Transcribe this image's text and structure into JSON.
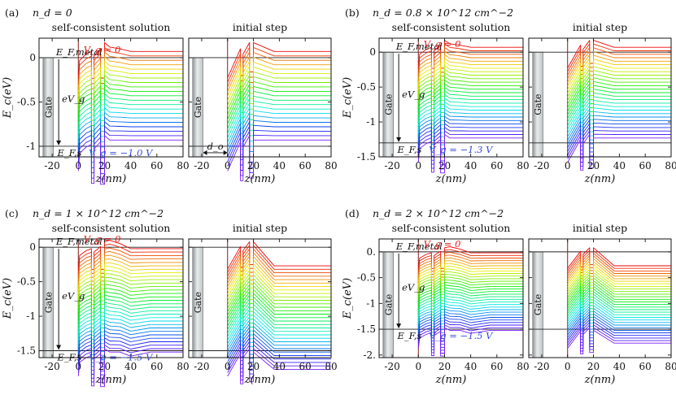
{
  "figure": {
    "x_axis_label": "z(nm)",
    "y_axis_label": "E_c(eV)",
    "gate_label": "Gate",
    "do_label": "d_o"
  },
  "chart_data": [
    {
      "type": "line",
      "panel_label": "(a)",
      "header": "n_d = 0",
      "subplots": [
        {
          "title": "self-consistent solution",
          "show_annotations": true
        },
        {
          "title": "initial step",
          "show_annotations": false
        }
      ],
      "xlim": [
        -30,
        80
      ],
      "x_ticks": [
        -20,
        0,
        20,
        40,
        60,
        80
      ],
      "x_tick_labels": [
        "-20",
        "0",
        "20",
        "40",
        "60",
        "80"
      ],
      "ylim": [
        -1.12,
        0.22
      ],
      "y_ticks": [
        0,
        -0.5,
        -1
      ],
      "y_tick_labels": [
        "0",
        "-0.5",
        "-1"
      ],
      "xlabel": "z(nm)",
      "ylabel": "E_c(eV)",
      "fermi_metal": 0,
      "fermi_s": -1.0,
      "fermi_metal_label": "E_F,metal",
      "fermi_s_label": "E_F,s",
      "eVg_label": "eV_g",
      "vg_top_label": "V_g = 0",
      "vg_bottom_label": "V_g = −1.0 V",
      "vg_range": [
        0,
        -1.0
      ],
      "n_curves": 21,
      "wells_nm": [
        [
          10,
          12
        ],
        [
          17,
          20
        ]
      ],
      "flat_level_at_vg0": 0.07,
      "show_do": true
    },
    {
      "type": "line",
      "panel_label": "(b)",
      "header": "n_d = 0.8 × 10^12 cm^−2",
      "subplots": [
        {
          "title": "self-consistent solution",
          "show_annotations": true
        },
        {
          "title": "initial step",
          "show_annotations": false
        }
      ],
      "xlim": [
        -30,
        80
      ],
      "x_ticks": [
        -20,
        0,
        20,
        40,
        60,
        80
      ],
      "x_tick_labels": [
        "-20",
        "0",
        "20",
        "40",
        "60",
        "80"
      ],
      "ylim": [
        -1.5,
        0.2
      ],
      "y_ticks": [
        0,
        -0.5,
        -1,
        -1.5
      ],
      "y_tick_labels": [
        "0",
        "-0.5",
        "-1",
        "-1.5"
      ],
      "xlabel": "z(nm)",
      "ylabel": "E_c(eV)",
      "fermi_metal": 0,
      "fermi_s": -1.3,
      "fermi_metal_label": "E_F,metal",
      "fermi_s_label": "E_F,s",
      "eVg_label": "eV_g",
      "vg_top_label": "V_g = 0",
      "vg_bottom_label": "V_g = −1.3 V",
      "vg_range": [
        0,
        -1.3
      ],
      "n_curves": 27,
      "wells_nm": [
        [
          10,
          12
        ],
        [
          17,
          20
        ]
      ],
      "flat_level_at_vg0": 0.07,
      "show_do": false
    },
    {
      "type": "line",
      "panel_label": "(c)",
      "header": "n_d = 1 × 10^12 cm^−2",
      "subplots": [
        {
          "title": "self-consistent solution",
          "show_annotations": true
        },
        {
          "title": "initial step",
          "show_annotations": false
        }
      ],
      "xlim": [
        -30,
        80
      ],
      "x_ticks": [
        -20,
        0,
        20,
        40,
        60,
        80
      ],
      "x_tick_labels": [
        "-20",
        "0",
        "20",
        "40",
        "60",
        "80"
      ],
      "ylim": [
        -1.6,
        0.12
      ],
      "y_ticks": [
        0,
        -0.5,
        -1,
        -1.5
      ],
      "y_tick_labels": [
        "0",
        "-0.5",
        "-1",
        "-1.5"
      ],
      "xlabel": "z(nm)",
      "ylabel": "E_c(eV)",
      "fermi_metal": 0,
      "fermi_s": -1.5,
      "fermi_metal_label": "E_F,metal",
      "fermi_s_label": "E_F,s",
      "eVg_label": "eV_g",
      "vg_top_label": "V_g = 0",
      "vg_bottom_label": "V_g = −1.5 V",
      "vg_range": [
        0,
        -1.5
      ],
      "n_curves": 31,
      "wells_nm": [
        [
          10,
          12
        ],
        [
          17,
          20
        ]
      ],
      "flat_level_at_vg0": -0.02,
      "show_do": false
    },
    {
      "type": "line",
      "panel_label": "(d)",
      "header": "n_d = 2 × 10^12 cm^−2",
      "subplots": [
        {
          "title": "self-consistent solution",
          "show_annotations": true
        },
        {
          "title": "initial step",
          "show_annotations": false
        }
      ],
      "xlim": [
        -30,
        80
      ],
      "x_ticks": [
        -20,
        0,
        20,
        40,
        60,
        80
      ],
      "x_tick_labels": [
        "-20",
        "0",
        "20",
        "40",
        "60",
        "80"
      ],
      "ylim": [
        -2.05,
        0.25
      ],
      "y_ticks": [
        0,
        -0.5,
        -1,
        -1.5,
        -2
      ],
      "y_tick_labels": [
        "0.",
        "-0.5",
        "-1",
        "-1.5",
        "-2."
      ],
      "xlabel": "z(nm)",
      "ylabel": "E_c(eV)",
      "fermi_metal": 0,
      "fermi_s": -1.5,
      "fermi_metal_label": "E_F,metal",
      "fermi_s_label": "E_F,s",
      "eVg_label": "eV_g",
      "vg_top_label": "V_g = 0",
      "vg_bottom_label": "V_g = −1.5 V",
      "vg_range": [
        0,
        -1.5
      ],
      "n_curves": 31,
      "wells_nm": [
        [
          10,
          12
        ],
        [
          17,
          20
        ]
      ],
      "flat_level_at_vg0": -0.02,
      "show_do": false
    }
  ]
}
